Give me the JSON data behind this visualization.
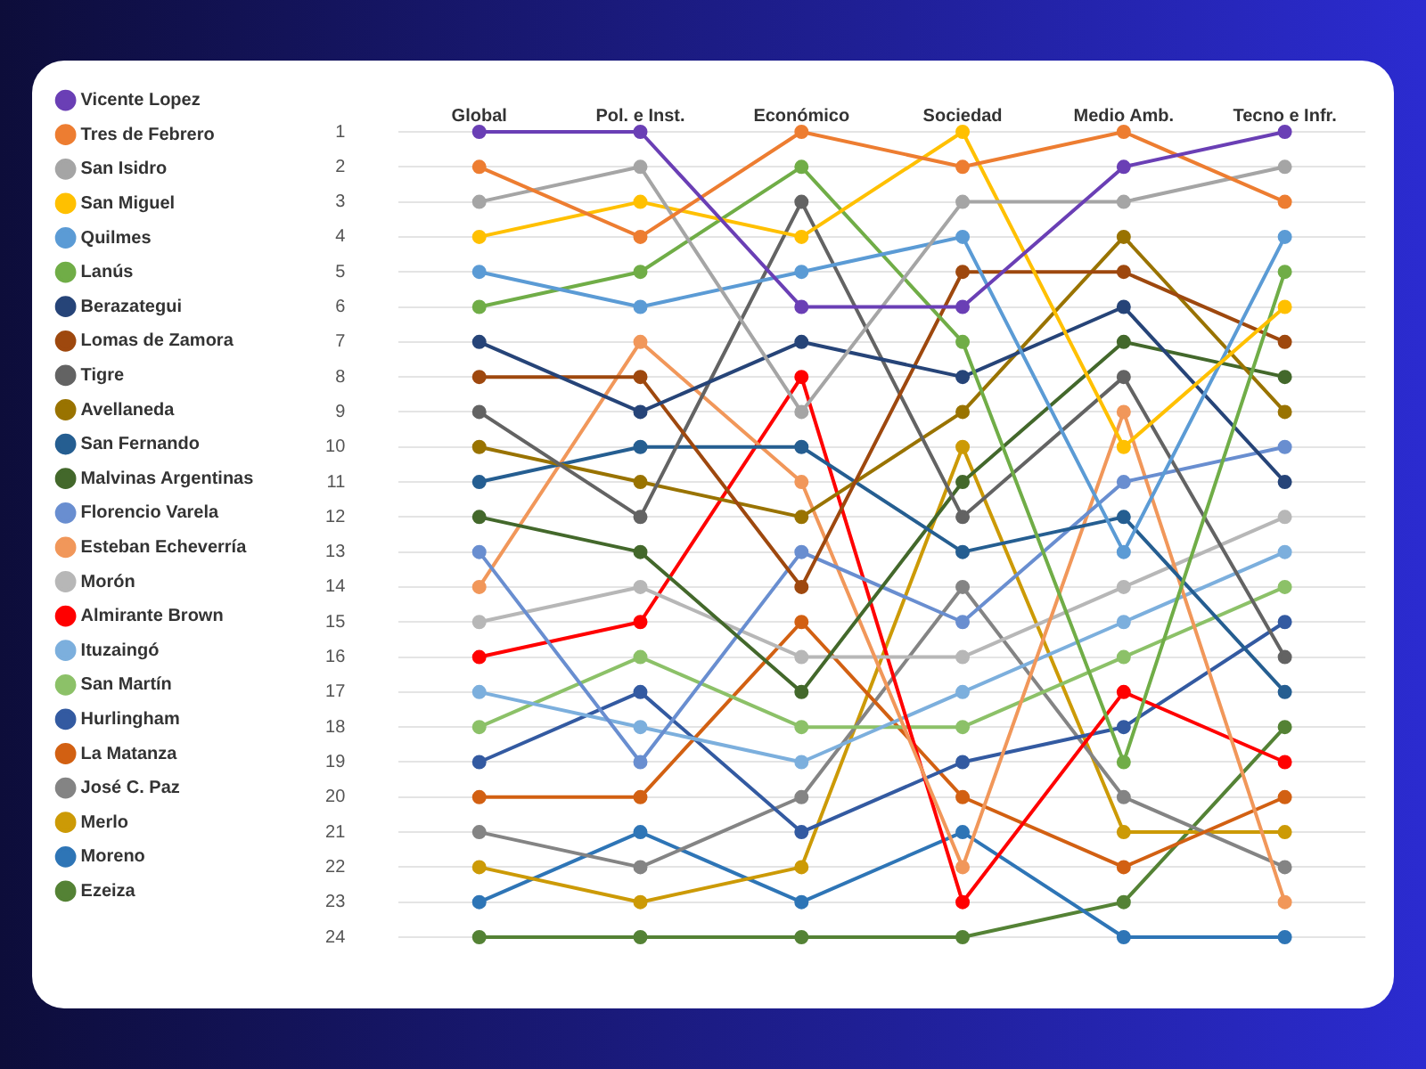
{
  "chart_data": {
    "type": "line",
    "categories": [
      "Global",
      "Pol. e Inst.",
      "Económico",
      "Sociedad",
      "Medio Amb.",
      "Tecno e Infr."
    ],
    "ylim": [
      24,
      1
    ],
    "yticks": [
      1,
      2,
      3,
      4,
      5,
      6,
      7,
      8,
      9,
      10,
      11,
      12,
      13,
      14,
      15,
      16,
      17,
      18,
      19,
      20,
      21,
      22,
      23,
      24
    ],
    "grid": "y",
    "legend": "left",
    "marker": "circle",
    "line_style": "solid",
    "series": [
      {
        "name": "Vicente Lopez",
        "color": "#6a3fb5",
        "values": [
          1,
          1,
          6,
          6,
          2,
          1
        ]
      },
      {
        "name": "Tres de Febrero",
        "color": "#ed7d31",
        "values": [
          2,
          4,
          1,
          2,
          1,
          3
        ]
      },
      {
        "name": "San Isidro",
        "color": "#a5a5a5",
        "values": [
          3,
          2,
          9,
          3,
          3,
          2
        ]
      },
      {
        "name": "San Miguel",
        "color": "#ffc000",
        "values": [
          4,
          3,
          4,
          1,
          10,
          6
        ]
      },
      {
        "name": "Quilmes",
        "color": "#5b9bd5",
        "values": [
          5,
          6,
          5,
          4,
          13,
          4
        ]
      },
      {
        "name": "Lanús",
        "color": "#70ad47",
        "values": [
          6,
          5,
          2,
          7,
          19,
          5
        ]
      },
      {
        "name": "Berazategui",
        "color": "#264478",
        "values": [
          7,
          9,
          7,
          8,
          6,
          11
        ]
      },
      {
        "name": "Lomas de Zamora",
        "color": "#9e480e",
        "values": [
          8,
          8,
          14,
          5,
          5,
          7
        ]
      },
      {
        "name": "Tigre",
        "color": "#636363",
        "values": [
          9,
          12,
          3,
          12,
          8,
          16
        ]
      },
      {
        "name": "Avellaneda",
        "color": "#997300",
        "values": [
          10,
          11,
          12,
          9,
          4,
          9
        ]
      },
      {
        "name": "San Fernando",
        "color": "#255e91",
        "values": [
          11,
          10,
          10,
          13,
          12,
          17
        ]
      },
      {
        "name": "Malvinas Argentinas",
        "color": "#43682b",
        "values": [
          12,
          13,
          17,
          11,
          7,
          8
        ]
      },
      {
        "name": "Florencio Varela",
        "color": "#698ed0",
        "values": [
          13,
          19,
          13,
          15,
          11,
          10
        ]
      },
      {
        "name": "Esteban Echeverría",
        "color": "#f1975a",
        "values": [
          14,
          7,
          11,
          22,
          9,
          23
        ]
      },
      {
        "name": "Morón",
        "color": "#b7b7b7",
        "values": [
          15,
          14,
          16,
          16,
          14,
          12
        ]
      },
      {
        "name": "Almirante Brown",
        "color": "#ff0000",
        "values": [
          16,
          15,
          8,
          23,
          17,
          19
        ]
      },
      {
        "name": "Ituzaingó",
        "color": "#7cafdd",
        "values": [
          17,
          18,
          19,
          17,
          15,
          13
        ]
      },
      {
        "name": "San Martín",
        "color": "#8cc168",
        "values": [
          18,
          16,
          18,
          18,
          16,
          14
        ]
      },
      {
        "name": "Hurlingham",
        "color": "#335aa1",
        "values": [
          19,
          17,
          21,
          19,
          18,
          15
        ]
      },
      {
        "name": "La Matanza",
        "color": "#d26012",
        "values": [
          20,
          20,
          15,
          20,
          22,
          20
        ]
      },
      {
        "name": "José C. Paz",
        "color": "#848484",
        "values": [
          21,
          22,
          20,
          14,
          20,
          22
        ]
      },
      {
        "name": "Merlo",
        "color": "#cc9a06",
        "values": [
          22,
          23,
          22,
          10,
          21,
          21
        ]
      },
      {
        "name": "Moreno",
        "color": "#2e75b6",
        "values": [
          23,
          21,
          23,
          21,
          24,
          24
        ]
      },
      {
        "name": "Ezeiza",
        "color": "#548235",
        "values": [
          24,
          24,
          24,
          24,
          23,
          18
        ]
      }
    ]
  }
}
